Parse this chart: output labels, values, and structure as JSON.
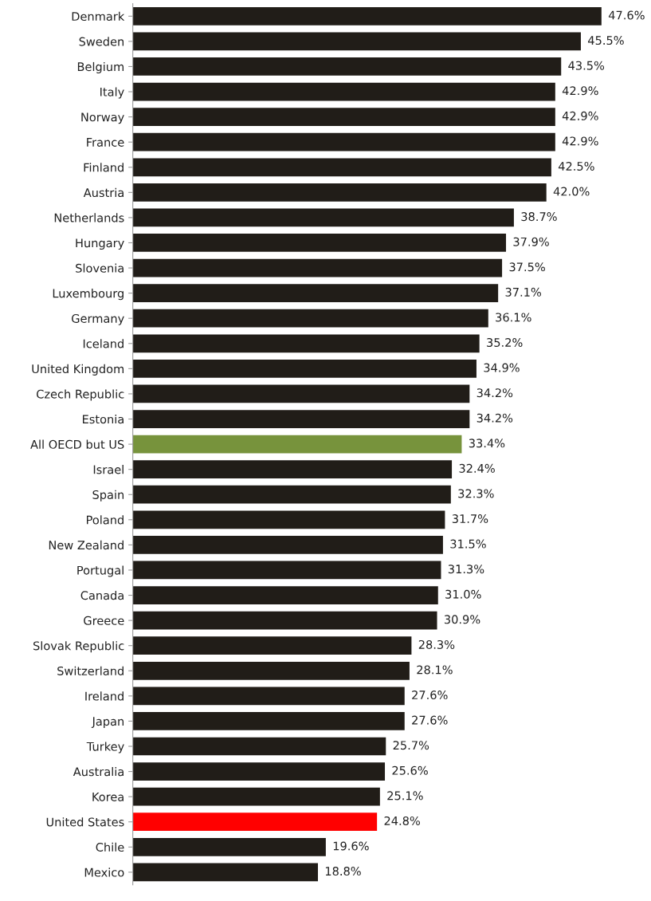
{
  "chart_data": {
    "type": "bar",
    "orientation": "horizontal",
    "categories": [
      "Denmark",
      "Sweden",
      "Belgium",
      "Italy",
      "Norway",
      "France",
      "Finland",
      "Austria",
      "Netherlands",
      "Hungary",
      "Slovenia",
      "Luxembourg",
      "Germany",
      "Iceland",
      "United Kingdom",
      "Czech Republic",
      "Estonia",
      "All OECD but US",
      "Israel",
      "Spain",
      "Poland",
      "New Zealand",
      "Portugal",
      "Canada",
      "Greece",
      "Slovak Republic",
      "Switzerland",
      "Ireland",
      "Japan",
      "Turkey",
      "Australia",
      "Korea",
      "United States",
      "Chile",
      "Mexico"
    ],
    "values": [
      47.6,
      45.5,
      43.5,
      42.9,
      42.9,
      42.9,
      42.5,
      42.0,
      38.7,
      37.9,
      37.5,
      37.1,
      36.1,
      35.2,
      34.9,
      34.2,
      34.2,
      33.4,
      32.4,
      32.3,
      31.7,
      31.5,
      31.3,
      31.0,
      30.9,
      28.3,
      28.1,
      27.6,
      27.6,
      25.7,
      25.6,
      25.1,
      24.8,
      19.6,
      18.8
    ],
    "value_labels": [
      "47.6%",
      "45.5%",
      "43.5%",
      "42.9%",
      "42.9%",
      "42.9%",
      "42.5%",
      "42.0%",
      "38.7%",
      "37.9%",
      "37.5%",
      "37.1%",
      "36.1%",
      "35.2%",
      "34.9%",
      "34.2%",
      "34.2%",
      "33.4%",
      "32.4%",
      "32.3%",
      "31.7%",
      "31.5%",
      "31.3%",
      "31.0%",
      "30.9%",
      "28.3%",
      "28.1%",
      "27.6%",
      "27.6%",
      "25.7%",
      "25.6%",
      "25.1%",
      "24.8%",
      "19.6%",
      "18.8%"
    ],
    "colors": [
      "#211d18",
      "#211d18",
      "#211d18",
      "#211d18",
      "#211d18",
      "#211d18",
      "#211d18",
      "#211d18",
      "#211d18",
      "#211d18",
      "#211d18",
      "#211d18",
      "#211d18",
      "#211d18",
      "#211d18",
      "#211d18",
      "#211d18",
      "#77933c",
      "#211d18",
      "#211d18",
      "#211d18",
      "#211d18",
      "#211d18",
      "#211d18",
      "#211d18",
      "#211d18",
      "#211d18",
      "#211d18",
      "#211d18",
      "#211d18",
      "#211d18",
      "#211d18",
      "#ff0000",
      "#211d18",
      "#211d18"
    ],
    "tick_labels": "y",
    "grid": false,
    "legend": false
  }
}
